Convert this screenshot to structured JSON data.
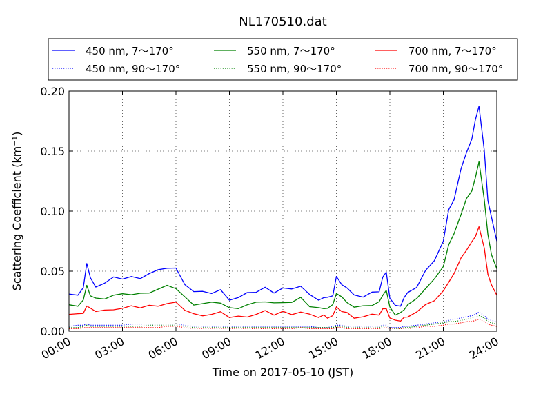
{
  "chart_data": {
    "type": "line",
    "title": "NL170510.dat",
    "xlabel": "Time on 2017-05-10 (JST)",
    "ylabel": "Scattering Coefficient (km⁻¹)",
    "xlim": [
      0,
      24
    ],
    "ylim": [
      0,
      0.2
    ],
    "x_ticks": [
      0,
      3,
      6,
      9,
      12,
      15,
      18,
      21,
      24
    ],
    "x_tick_labels": [
      "00:00",
      "03:00",
      "06:00",
      "09:00",
      "12:00",
      "15:00",
      "18:00",
      "21:00",
      "24:00"
    ],
    "y_ticks": [
      0,
      0.05,
      0.1,
      0.15,
      0.2
    ],
    "y_tick_labels": [
      "0.00",
      "0.05",
      "0.10",
      "0.15",
      "0.20"
    ],
    "grid": true,
    "legend_position": "top",
    "x_hours": [
      0,
      0.5,
      0.8,
      1.0,
      1.2,
      1.5,
      2.0,
      2.5,
      3.0,
      3.5,
      4.0,
      4.5,
      5.0,
      5.5,
      6.0,
      6.5,
      7.0,
      7.5,
      8.0,
      8.5,
      9.0,
      9.5,
      10.0,
      10.5,
      11.0,
      11.5,
      12.0,
      12.5,
      13.0,
      13.5,
      14.0,
      14.3,
      14.5,
      14.8,
      15.0,
      15.3,
      15.6,
      16.0,
      16.5,
      17.0,
      17.4,
      17.6,
      17.8,
      18.0,
      18.3,
      18.6,
      18.8,
      19.0,
      19.5,
      20.0,
      20.5,
      21.0,
      21.3,
      21.6,
      22.0,
      22.3,
      22.6,
      22.8,
      23.0,
      23.3,
      23.5,
      23.7,
      24.0
    ],
    "series": [
      {
        "name": "450 nm, 7～170°",
        "color": "#0000ff",
        "style": "solid",
        "values": [
          0.031,
          0.03,
          0.035,
          0.057,
          0.044,
          0.038,
          0.04,
          0.044,
          0.044,
          0.045,
          0.045,
          0.048,
          0.05,
          0.053,
          0.052,
          0.04,
          0.033,
          0.032,
          0.032,
          0.034,
          0.027,
          0.028,
          0.031,
          0.033,
          0.036,
          0.033,
          0.036,
          0.034,
          0.038,
          0.03,
          0.027,
          0.028,
          0.027,
          0.03,
          0.045,
          0.04,
          0.036,
          0.029,
          0.029,
          0.032,
          0.034,
          0.045,
          0.048,
          0.028,
          0.021,
          0.022,
          0.028,
          0.031,
          0.037,
          0.05,
          0.06,
          0.075,
          0.1,
          0.11,
          0.135,
          0.15,
          0.16,
          0.175,
          0.188,
          0.15,
          0.11,
          0.095,
          0.075
        ]
      },
      {
        "name": "550 nm, 7～170°",
        "color": "#008000",
        "style": "solid",
        "values": [
          0.022,
          0.022,
          0.026,
          0.037,
          0.03,
          0.027,
          0.028,
          0.03,
          0.03,
          0.031,
          0.031,
          0.033,
          0.035,
          0.037,
          0.036,
          0.028,
          0.023,
          0.023,
          0.023,
          0.024,
          0.019,
          0.02,
          0.022,
          0.023,
          0.025,
          0.023,
          0.025,
          0.024,
          0.027,
          0.021,
          0.019,
          0.02,
          0.019,
          0.021,
          0.032,
          0.028,
          0.025,
          0.02,
          0.02,
          0.022,
          0.024,
          0.031,
          0.034,
          0.019,
          0.014,
          0.015,
          0.019,
          0.022,
          0.026,
          0.036,
          0.043,
          0.055,
          0.072,
          0.08,
          0.098,
          0.11,
          0.118,
          0.128,
          0.14,
          0.11,
          0.08,
          0.065,
          0.052
        ]
      },
      {
        "name": "700 nm, 7～170°",
        "color": "#ff0000",
        "style": "solid",
        "values": [
          0.014,
          0.014,
          0.016,
          0.021,
          0.018,
          0.017,
          0.017,
          0.019,
          0.019,
          0.02,
          0.02,
          0.021,
          0.022,
          0.023,
          0.023,
          0.018,
          0.014,
          0.014,
          0.014,
          0.015,
          0.012,
          0.012,
          0.013,
          0.014,
          0.016,
          0.014,
          0.016,
          0.015,
          0.016,
          0.013,
          0.012,
          0.013,
          0.012,
          0.013,
          0.019,
          0.017,
          0.015,
          0.012,
          0.012,
          0.013,
          0.014,
          0.018,
          0.02,
          0.011,
          0.008,
          0.009,
          0.011,
          0.013,
          0.016,
          0.021,
          0.026,
          0.033,
          0.042,
          0.048,
          0.06,
          0.068,
          0.074,
          0.08,
          0.087,
          0.068,
          0.048,
          0.038,
          0.03
        ]
      },
      {
        "name": "450 nm, 90～170°",
        "color": "#0000ff",
        "style": "dotted",
        "values": [
          0.004,
          0.005,
          0.005,
          0.006,
          0.005,
          0.005,
          0.005,
          0.005,
          0.005,
          0.006,
          0.006,
          0.006,
          0.006,
          0.006,
          0.006,
          0.005,
          0.004,
          0.004,
          0.004,
          0.004,
          0.004,
          0.004,
          0.004,
          0.004,
          0.004,
          0.004,
          0.004,
          0.004,
          0.004,
          0.004,
          0.003,
          0.003,
          0.003,
          0.004,
          0.005,
          0.005,
          0.004,
          0.004,
          0.004,
          0.004,
          0.004,
          0.005,
          0.005,
          0.003,
          0.003,
          0.003,
          0.004,
          0.004,
          0.005,
          0.006,
          0.007,
          0.008,
          0.009,
          0.01,
          0.011,
          0.012,
          0.013,
          0.014,
          0.016,
          0.013,
          0.01,
          0.009,
          0.008
        ]
      },
      {
        "name": "550 nm, 90～170°",
        "color": "#008000",
        "style": "dotted",
        "values": [
          0.003,
          0.003,
          0.004,
          0.005,
          0.004,
          0.004,
          0.004,
          0.004,
          0.004,
          0.004,
          0.004,
          0.005,
          0.005,
          0.005,
          0.005,
          0.004,
          0.003,
          0.003,
          0.003,
          0.003,
          0.003,
          0.003,
          0.003,
          0.003,
          0.003,
          0.003,
          0.003,
          0.003,
          0.003,
          0.003,
          0.003,
          0.003,
          0.003,
          0.003,
          0.004,
          0.004,
          0.003,
          0.003,
          0.003,
          0.003,
          0.003,
          0.004,
          0.004,
          0.003,
          0.002,
          0.002,
          0.003,
          0.003,
          0.004,
          0.005,
          0.006,
          0.007,
          0.008,
          0.008,
          0.009,
          0.01,
          0.011,
          0.012,
          0.013,
          0.011,
          0.008,
          0.007,
          0.006
        ]
      },
      {
        "name": "700 nm, 90～170°",
        "color": "#ff0000",
        "style": "dotted",
        "values": [
          0.002,
          0.002,
          0.003,
          0.003,
          0.003,
          0.003,
          0.003,
          0.003,
          0.003,
          0.003,
          0.003,
          0.003,
          0.003,
          0.004,
          0.004,
          0.003,
          0.002,
          0.002,
          0.002,
          0.002,
          0.002,
          0.002,
          0.002,
          0.002,
          0.002,
          0.002,
          0.002,
          0.002,
          0.003,
          0.002,
          0.002,
          0.002,
          0.002,
          0.002,
          0.003,
          0.003,
          0.002,
          0.002,
          0.002,
          0.002,
          0.002,
          0.003,
          0.003,
          0.002,
          0.002,
          0.002,
          0.002,
          0.002,
          0.003,
          0.004,
          0.004,
          0.005,
          0.006,
          0.006,
          0.007,
          0.008,
          0.008,
          0.009,
          0.01,
          0.008,
          0.006,
          0.005,
          0.004
        ]
      }
    ],
    "legend_order": [
      0,
      1,
      2,
      3,
      4,
      5
    ]
  }
}
